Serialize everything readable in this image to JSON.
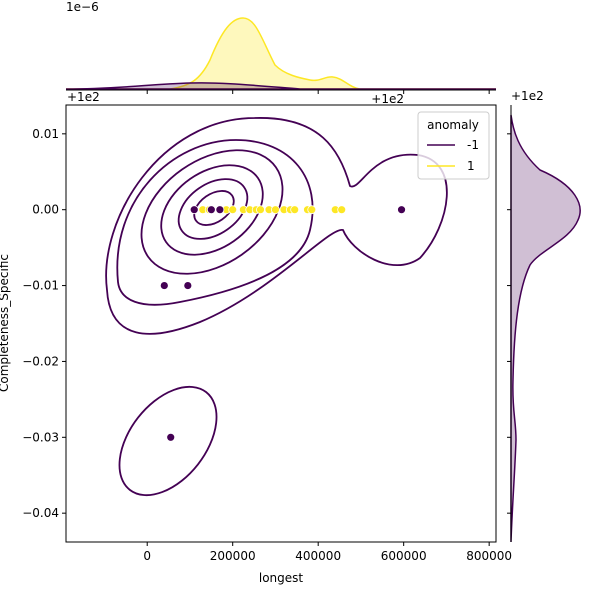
{
  "chart_data": {
    "type": "scatter",
    "title": "",
    "xlabel": "longest",
    "ylabel": "Completeness_Specific",
    "xlim": [
      -190000,
      816000
    ],
    "ylim": [
      -0.0438,
      0.0138
    ],
    "y_offset_label": "+1e2",
    "top_marginal_scale_label": "1e−6",
    "top_marginal_offset_label": "+1e2",
    "right_marginal_offset_label": "+1e2",
    "xticks": [
      0,
      200000,
      400000,
      600000,
      800000
    ],
    "xtick_labels": [
      "0",
      "200000",
      "400000",
      "600000",
      "800000"
    ],
    "yticks": [
      0.01,
      0.0,
      -0.01,
      -0.02,
      -0.03,
      -0.04
    ],
    "ytick_labels": [
      "0.01",
      "0.00",
      "−0.01",
      "−0.02",
      "−0.03",
      "−0.04"
    ],
    "legend": {
      "title": "anomaly",
      "placement": "top-right",
      "entries": [
        {
          "label": "-1",
          "color": "#440154"
        },
        {
          "label": "1",
          "color": "#fde725"
        }
      ]
    },
    "series": [
      {
        "name": "-1",
        "color": "#440154",
        "points": [
          [
            40000,
            -0.01
          ],
          [
            95000,
            -0.01
          ],
          [
            55000,
            -0.03
          ],
          [
            110000,
            0
          ],
          [
            150000,
            0
          ],
          [
            170000,
            0
          ],
          [
            595000,
            0
          ]
        ]
      },
      {
        "name": "1",
        "color": "#fde725",
        "points": [
          [
            130000,
            0
          ],
          [
            145000,
            0
          ],
          [
            185000,
            0
          ],
          [
            200000,
            0
          ],
          [
            225000,
            0
          ],
          [
            240000,
            0
          ],
          [
            255000,
            0
          ],
          [
            265000,
            0
          ],
          [
            285000,
            0
          ],
          [
            300000,
            0
          ],
          [
            320000,
            0
          ],
          [
            335000,
            0
          ],
          [
            345000,
            0
          ],
          [
            375000,
            0
          ],
          [
            385000,
            0
          ],
          [
            440000,
            0
          ],
          [
            455000,
            0
          ]
        ]
      }
    ]
  }
}
